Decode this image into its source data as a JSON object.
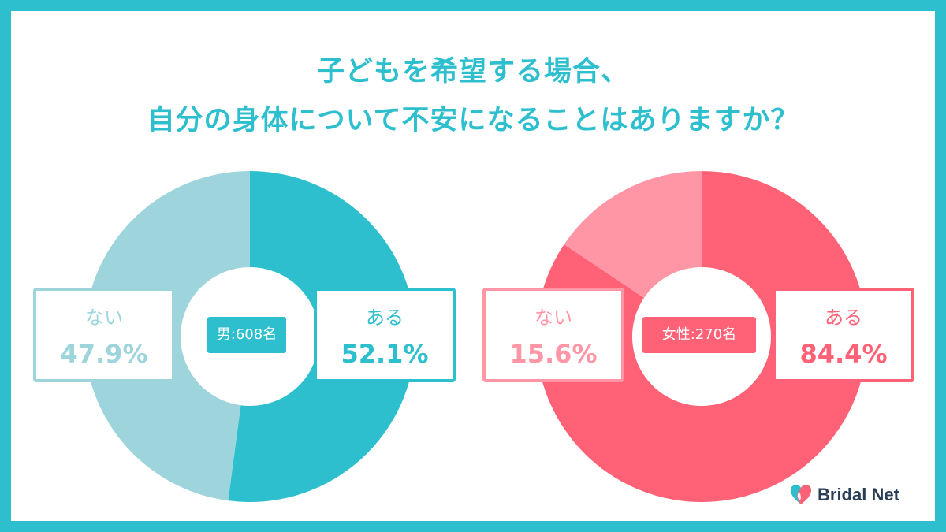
{
  "title_lines": [
    "子どもを希望する場合、",
    "自分の身体について不安になることはありますか？"
  ],
  "chart_data": [
    {
      "type": "pie",
      "donut": true,
      "center_label": "男:608名",
      "slices": [
        {
          "label": "ある",
          "value": 52.1,
          "display": "52.1%",
          "color": "#2ebfcf"
        },
        {
          "label": "ない",
          "value": 47.9,
          "display": "47.9%",
          "color": "#9ed5dd"
        }
      ]
    },
    {
      "type": "pie",
      "donut": true,
      "center_label": "女性:270名",
      "slices": [
        {
          "label": "ある",
          "value": 84.4,
          "display": "84.4%",
          "color": "#ff6276"
        },
        {
          "label": "ない",
          "value": 15.6,
          "display": "15.6%",
          "color": "#ff96a5"
        }
      ]
    }
  ],
  "logo": {
    "text": "Bridal Net",
    "icon": "heart-icon"
  }
}
